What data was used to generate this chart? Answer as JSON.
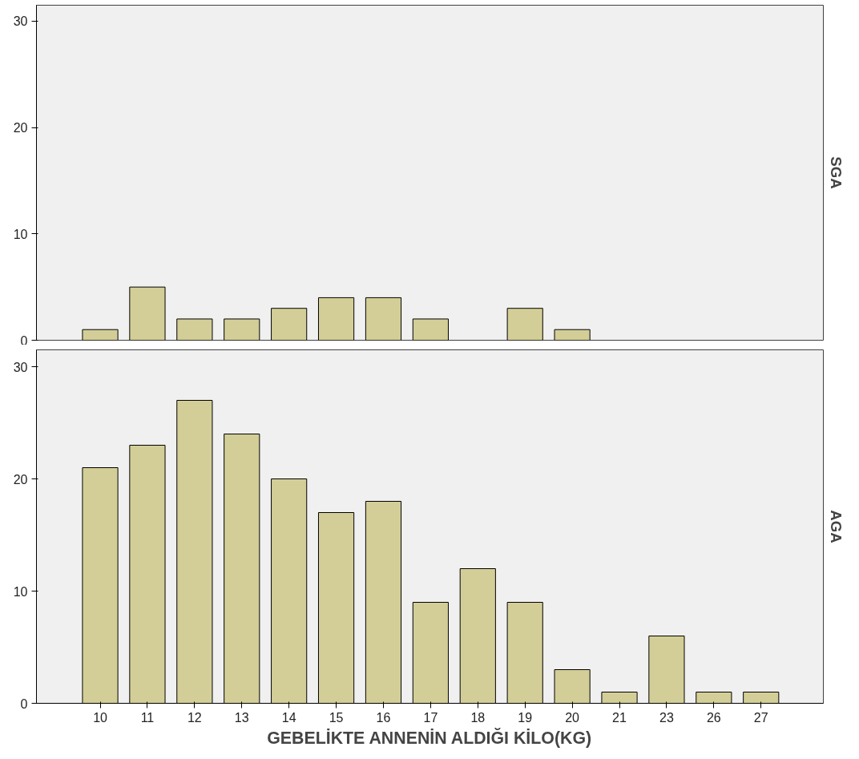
{
  "chart_data": [
    {
      "type": "bar",
      "title": "SGA",
      "categories": [
        "10",
        "11",
        "12",
        "13",
        "14",
        "15",
        "16",
        "17",
        "18",
        "19",
        "20",
        "21",
        "23",
        "26",
        "27"
      ],
      "values": [
        1,
        5,
        2,
        2,
        3,
        4,
        4,
        2,
        null,
        3,
        1,
        null,
        null,
        null,
        null
      ],
      "color": "#d3ce97",
      "ylim": [
        0,
        31.5
      ],
      "yticks": [
        0,
        10,
        20,
        30
      ],
      "grid": false,
      "tick_labels": "y"
    },
    {
      "type": "bar",
      "title": "AGA",
      "xlabel": "GEBELİKTE ANNENİN ALDIĞI KİLO(KG)",
      "categories": [
        "10",
        "11",
        "12",
        "13",
        "14",
        "15",
        "16",
        "17",
        "18",
        "19",
        "20",
        "21",
        "23",
        "26",
        "27"
      ],
      "values": [
        21,
        23,
        27,
        24,
        20,
        17,
        18,
        9,
        12,
        9,
        3,
        1,
        6,
        1,
        1
      ],
      "color": "#d3ce97",
      "ylim": [
        0,
        31.5
      ],
      "yticks": [
        0,
        10,
        20,
        30
      ],
      "grid": false
    }
  ]
}
